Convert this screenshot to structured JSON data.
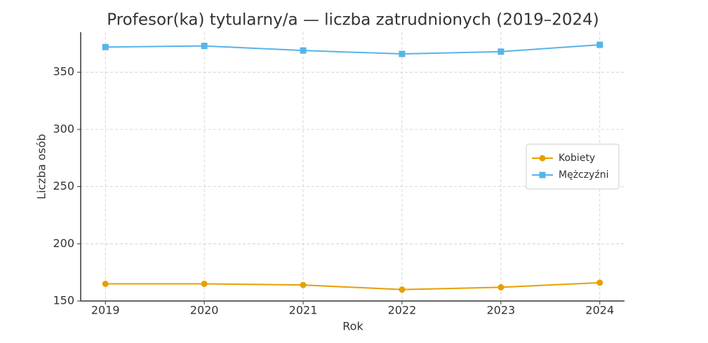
{
  "chart_data": {
    "type": "line",
    "title": "Profesor(ka) tytularny/a — liczba zatrudnionych (2019–2024)",
    "x_label": "Rok",
    "y_label": "Liczba osób",
    "x": [
      2019,
      2020,
      2021,
      2022,
      2023,
      2024
    ],
    "series": [
      {
        "name": "Kobiety",
        "color": "#E69F00",
        "marker": "circle",
        "values": [
          165,
          165,
          164,
          160,
          162,
          166
        ]
      },
      {
        "name": "Mężczyźni",
        "color": "#56B4E9",
        "marker": "square",
        "values": [
          372,
          373,
          369,
          366,
          368,
          374
        ]
      }
    ],
    "xlim": [
      2018.75,
      2024.25
    ],
    "xticks": [
      2019,
      2020,
      2021,
      2022,
      2023,
      2024
    ],
    "ylim": [
      150,
      385
    ],
    "yticks": [
      150,
      200,
      250,
      300,
      350
    ],
    "grid": true,
    "legend": "center right"
  }
}
